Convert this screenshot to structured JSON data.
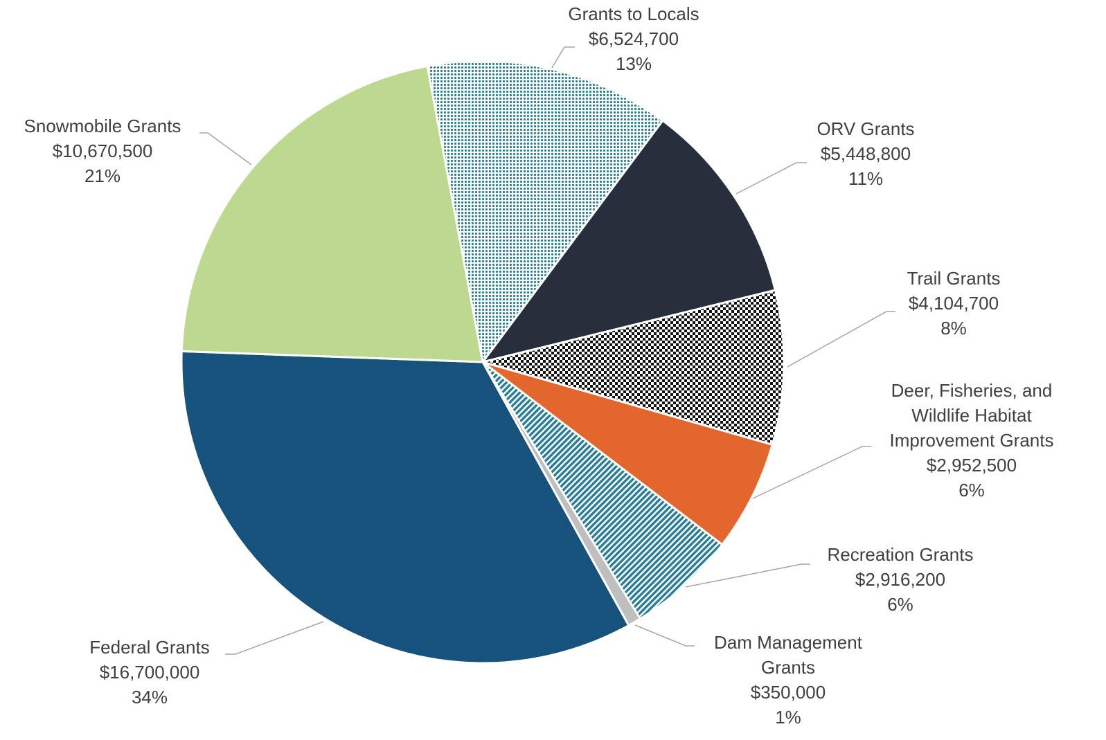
{
  "chart_data": {
    "type": "pie",
    "categories": [
      "Grants to Locals",
      "ORV Grants",
      "Trail Grants",
      "Deer, Fisheries, and Wildlife Habitat Improvement Grants",
      "Recreation Grants",
      "Dam Management Grants",
      "Federal Grants",
      "Snowmobile Grants"
    ],
    "values": [
      6524700,
      5448800,
      4104700,
      2952500,
      2916200,
      350000,
      16700000,
      10670500
    ],
    "value_labels": [
      "$6,524,700",
      "$5,448,800",
      "$4,104,700",
      "$2,952,500",
      "$2,916,200",
      "$350,000",
      "$16,700,000",
      "$10,670,500"
    ],
    "percent_labels": [
      "13%",
      "11%",
      "8%",
      "6%",
      "6%",
      "1%",
      "34%",
      "21%"
    ],
    "colors": [
      "#2a7f96",
      "#272f3c",
      "#111111",
      "#e3662c",
      "#2a7f96",
      "#bfbfbf",
      "#17527c",
      "#bcd98f"
    ],
    "patterns": [
      "dots",
      null,
      "checker",
      null,
      "stripes",
      null,
      null,
      null
    ]
  }
}
